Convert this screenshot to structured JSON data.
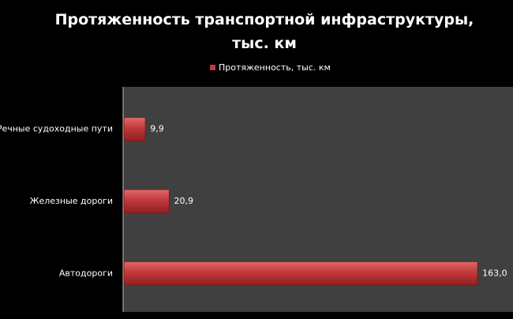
{
  "chart_data": {
    "type": "bar",
    "orientation": "horizontal",
    "title": "Протяженность транспортной инфраструктуры, тыс. км",
    "categories": [
      "Речные судоходные пути",
      "Железные дороги",
      "Автодороги"
    ],
    "series": [
      {
        "name": "Протяженность, тыс. км",
        "color": "#c0393b",
        "values": [
          9.9,
          20.9,
          163.0
        ],
        "value_labels": [
          "9,9",
          "20,9",
          "163,0"
        ]
      }
    ]
  }
}
